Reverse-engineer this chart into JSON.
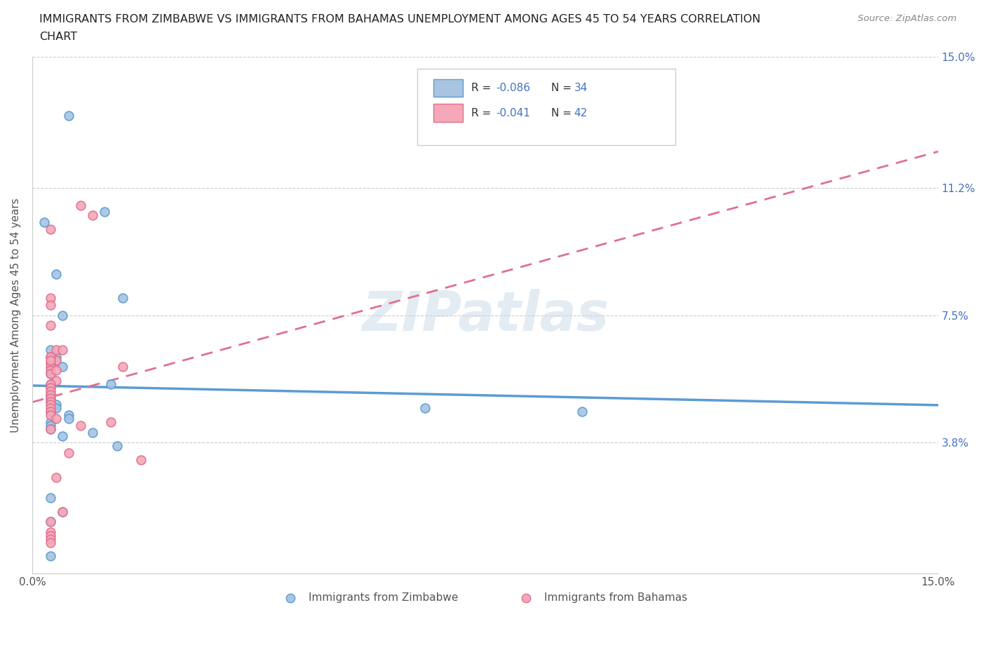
{
  "title_line1": "IMMIGRANTS FROM ZIMBABWE VS IMMIGRANTS FROM BAHAMAS UNEMPLOYMENT AMONG AGES 45 TO 54 YEARS CORRELATION",
  "title_line2": "CHART",
  "source": "Source: ZipAtlas.com",
  "ylabel": "Unemployment Among Ages 45 to 54 years",
  "xlim": [
    0.0,
    0.15
  ],
  "ylim": [
    0.0,
    0.15
  ],
  "ytick_labels": [
    "3.8%",
    "7.5%",
    "11.2%",
    "15.0%"
  ],
  "ytick_values": [
    0.038,
    0.075,
    0.112,
    0.15
  ],
  "color_zimbabwe_fill": "#a8c4e0",
  "color_zimbabwe_edge": "#5b9bd5",
  "color_bahamas_fill": "#f4a8b8",
  "color_bahamas_edge": "#e07090",
  "color_line_zimbabwe": "#5b9bd5",
  "color_line_bahamas": "#e07090",
  "color_label_blue": "#4472c4",
  "color_title": "#222222",
  "background_color": "#ffffff",
  "watermark": "ZIPatlas",
  "zimbabwe_x": [
    0.006,
    0.012,
    0.002,
    0.004,
    0.015,
    0.003,
    0.004,
    0.004,
    0.005,
    0.003,
    0.003,
    0.003,
    0.003,
    0.003,
    0.003,
    0.004,
    0.004,
    0.005,
    0.003,
    0.006,
    0.006,
    0.003,
    0.003,
    0.013,
    0.003,
    0.005,
    0.065,
    0.091,
    0.01,
    0.014,
    0.003,
    0.003,
    0.005,
    0.003
  ],
  "zimbabwe_y": [
    0.133,
    0.105,
    0.102,
    0.087,
    0.08,
    0.065,
    0.063,
    0.062,
    0.06,
    0.058,
    0.055,
    0.054,
    0.052,
    0.051,
    0.05,
    0.049,
    0.048,
    0.075,
    0.047,
    0.046,
    0.045,
    0.044,
    0.043,
    0.055,
    0.042,
    0.04,
    0.048,
    0.047,
    0.041,
    0.037,
    0.015,
    0.022,
    0.018,
    0.005
  ],
  "bahamas_x": [
    0.003,
    0.01,
    0.003,
    0.003,
    0.004,
    0.005,
    0.003,
    0.004,
    0.003,
    0.003,
    0.003,
    0.003,
    0.004,
    0.003,
    0.003,
    0.003,
    0.003,
    0.003,
    0.003,
    0.003,
    0.003,
    0.003,
    0.003,
    0.008,
    0.003,
    0.003,
    0.015,
    0.004,
    0.003,
    0.004,
    0.013,
    0.008,
    0.003,
    0.006,
    0.018,
    0.005,
    0.004,
    0.003,
    0.003,
    0.003,
    0.003,
    0.003
  ],
  "bahamas_y": [
    0.08,
    0.104,
    0.078,
    0.072,
    0.065,
    0.065,
    0.063,
    0.062,
    0.061,
    0.06,
    0.059,
    0.058,
    0.056,
    0.055,
    0.054,
    0.053,
    0.052,
    0.051,
    0.05,
    0.049,
    0.048,
    0.047,
    0.046,
    0.107,
    0.063,
    0.062,
    0.06,
    0.059,
    0.1,
    0.045,
    0.044,
    0.043,
    0.042,
    0.035,
    0.033,
    0.018,
    0.028,
    0.015,
    0.012,
    0.011,
    0.01,
    0.009
  ]
}
